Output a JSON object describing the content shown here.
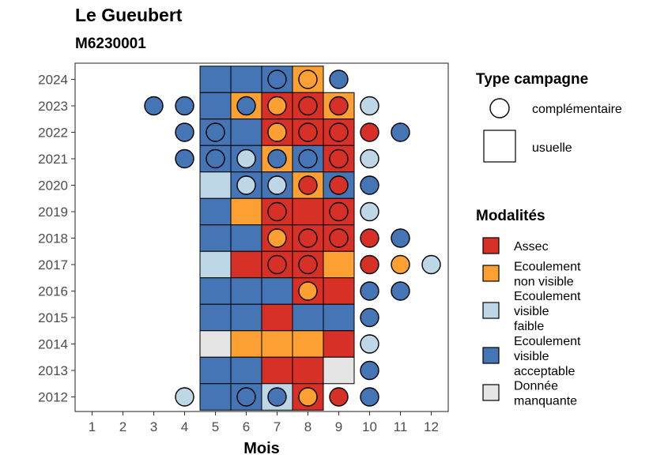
{
  "header": {
    "title": "Le Gueubert",
    "subtitle": "M6230001"
  },
  "chart_data": {
    "type": "heatmap",
    "xlabel": "Mois",
    "ylabel": "",
    "x_ticks": [
      "1",
      "2",
      "3",
      "4",
      "5",
      "6",
      "7",
      "8",
      "9",
      "10",
      "11",
      "12"
    ],
    "y_ticks": [
      "2012",
      "2013",
      "2014",
      "2015",
      "2016",
      "2017",
      "2018",
      "2019",
      "2020",
      "2021",
      "2022",
      "2023",
      "2024"
    ],
    "grid": false,
    "modalities": [
      {
        "key": "assec",
        "label_lines": [
          "Assec"
        ],
        "color": "#D73027"
      },
      {
        "key": "nonvisible",
        "label_lines": [
          "Ecoulement",
          "non visible"
        ],
        "color": "#FDA034"
      },
      {
        "key": "faible",
        "label_lines": [
          "Ecoulement",
          "visible",
          "faible"
        ],
        "color": "#BDD7E7"
      },
      {
        "key": "acceptable",
        "label_lines": [
          "Ecoulement",
          "visible",
          "acceptable"
        ],
        "color": "#4575B4"
      },
      {
        "key": "manquante",
        "label_lines": [
          "Donnée",
          "manquante"
        ],
        "color": "#E5E5E5"
      }
    ],
    "campaign_types": [
      {
        "key": "complementaire",
        "label": "complémentaire",
        "shape": "circle"
      },
      {
        "key": "usuelle",
        "label": "usuelle",
        "shape": "square"
      }
    ],
    "usuelle": [
      {
        "year": 2024,
        "months": [
          5,
          6,
          7,
          8
        ],
        "values": [
          "acceptable",
          "acceptable",
          "acceptable",
          "nonvisible"
        ]
      },
      {
        "year": 2023,
        "months": [
          5,
          6,
          7,
          8,
          9
        ],
        "values": [
          "acceptable",
          "nonvisible",
          "assec",
          "assec",
          "nonvisible"
        ]
      },
      {
        "year": 2022,
        "months": [
          5,
          6,
          7,
          8,
          9
        ],
        "values": [
          "acceptable",
          "acceptable",
          "assec",
          "assec",
          "assec"
        ]
      },
      {
        "year": 2021,
        "months": [
          5,
          6,
          7,
          8,
          9
        ],
        "values": [
          "acceptable",
          "acceptable",
          "nonvisible",
          "acceptable",
          "assec"
        ]
      },
      {
        "year": 2020,
        "months": [
          5,
          6,
          7,
          8,
          9
        ],
        "values": [
          "faible",
          "acceptable",
          "acceptable",
          "nonvisible",
          "acceptable"
        ]
      },
      {
        "year": 2019,
        "months": [
          5,
          6,
          7,
          8,
          9
        ],
        "values": [
          "acceptable",
          "nonvisible",
          "assec",
          "assec",
          "assec"
        ]
      },
      {
        "year": 2018,
        "months": [
          5,
          6,
          7,
          8,
          9
        ],
        "values": [
          "acceptable",
          "acceptable",
          "assec",
          "assec",
          "assec"
        ]
      },
      {
        "year": 2017,
        "months": [
          5,
          6,
          7,
          8,
          9
        ],
        "values": [
          "faible",
          "assec",
          "assec",
          "assec",
          "nonvisible"
        ]
      },
      {
        "year": 2016,
        "months": [
          5,
          6,
          7,
          8,
          9
        ],
        "values": [
          "acceptable",
          "acceptable",
          "acceptable",
          "assec",
          "assec"
        ]
      },
      {
        "year": 2015,
        "months": [
          5,
          6,
          7,
          8,
          9
        ],
        "values": [
          "acceptable",
          "acceptable",
          "assec",
          "acceptable",
          "acceptable"
        ]
      },
      {
        "year": 2014,
        "months": [
          5,
          6,
          7,
          8,
          9
        ],
        "values": [
          "manquante",
          "nonvisible",
          "nonvisible",
          "nonvisible",
          "assec"
        ]
      },
      {
        "year": 2013,
        "months": [
          5,
          6,
          7,
          8,
          9
        ],
        "values": [
          "acceptable",
          "acceptable",
          "assec",
          "assec",
          "manquante"
        ]
      },
      {
        "year": 2012,
        "months": [
          5,
          6,
          7,
          8
        ],
        "values": [
          "acceptable",
          "acceptable",
          "faible",
          "assec"
        ]
      }
    ],
    "complementaire": [
      {
        "year": 2024,
        "month": 7,
        "value": "acceptable"
      },
      {
        "year": 2024,
        "month": 8,
        "value": "nonvisible"
      },
      {
        "year": 2024,
        "month": 9,
        "value": "acceptable"
      },
      {
        "year": 2023,
        "month": 3,
        "value": "acceptable"
      },
      {
        "year": 2023,
        "month": 4,
        "value": "acceptable"
      },
      {
        "year": 2023,
        "month": 6,
        "value": "acceptable"
      },
      {
        "year": 2023,
        "month": 7,
        "value": "nonvisible"
      },
      {
        "year": 2023,
        "month": 8,
        "value": "assec"
      },
      {
        "year": 2023,
        "month": 9,
        "value": "assec"
      },
      {
        "year": 2023,
        "month": 10,
        "value": "faible"
      },
      {
        "year": 2022,
        "month": 4,
        "value": "acceptable"
      },
      {
        "year": 2022,
        "month": 5,
        "value": "acceptable"
      },
      {
        "year": 2022,
        "month": 7,
        "value": "nonvisible"
      },
      {
        "year": 2022,
        "month": 8,
        "value": "assec"
      },
      {
        "year": 2022,
        "month": 9,
        "value": "assec"
      },
      {
        "year": 2022,
        "month": 10,
        "value": "assec"
      },
      {
        "year": 2022,
        "month": 11,
        "value": "acceptable"
      },
      {
        "year": 2021,
        "month": 4,
        "value": "acceptable"
      },
      {
        "year": 2021,
        "month": 5,
        "value": "acceptable"
      },
      {
        "year": 2021,
        "month": 6,
        "value": "faible"
      },
      {
        "year": 2021,
        "month": 7,
        "value": "acceptable"
      },
      {
        "year": 2021,
        "month": 8,
        "value": "acceptable"
      },
      {
        "year": 2021,
        "month": 9,
        "value": "assec"
      },
      {
        "year": 2021,
        "month": 10,
        "value": "faible"
      },
      {
        "year": 2020,
        "month": 6,
        "value": "faible"
      },
      {
        "year": 2020,
        "month": 7,
        "value": "faible"
      },
      {
        "year": 2020,
        "month": 8,
        "value": "assec"
      },
      {
        "year": 2020,
        "month": 9,
        "value": "assec"
      },
      {
        "year": 2020,
        "month": 10,
        "value": "acceptable"
      },
      {
        "year": 2019,
        "month": 7,
        "value": "assec"
      },
      {
        "year": 2019,
        "month": 9,
        "value": "assec"
      },
      {
        "year": 2019,
        "month": 10,
        "value": "faible"
      },
      {
        "year": 2018,
        "month": 7,
        "value": "nonvisible"
      },
      {
        "year": 2018,
        "month": 8,
        "value": "assec"
      },
      {
        "year": 2018,
        "month": 9,
        "value": "assec"
      },
      {
        "year": 2018,
        "month": 10,
        "value": "assec"
      },
      {
        "year": 2018,
        "month": 11,
        "value": "acceptable"
      },
      {
        "year": 2017,
        "month": 7,
        "value": "assec"
      },
      {
        "year": 2017,
        "month": 8,
        "value": "assec"
      },
      {
        "year": 2017,
        "month": 10,
        "value": "assec"
      },
      {
        "year": 2017,
        "month": 11,
        "value": "nonvisible"
      },
      {
        "year": 2017,
        "month": 12,
        "value": "faible"
      },
      {
        "year": 2016,
        "month": 8,
        "value": "nonvisible"
      },
      {
        "year": 2016,
        "month": 10,
        "value": "acceptable"
      },
      {
        "year": 2016,
        "month": 11,
        "value": "acceptable"
      },
      {
        "year": 2015,
        "month": 10,
        "value": "acceptable"
      },
      {
        "year": 2014,
        "month": 10,
        "value": "faible"
      },
      {
        "year": 2013,
        "month": 10,
        "value": "acceptable"
      },
      {
        "year": 2012,
        "month": 4,
        "value": "faible"
      },
      {
        "year": 2012,
        "month": 6,
        "value": "acceptable"
      },
      {
        "year": 2012,
        "month": 7,
        "value": "acceptable"
      },
      {
        "year": 2012,
        "month": 8,
        "value": "nonvisible"
      },
      {
        "year": 2012,
        "month": 9,
        "value": "assec"
      },
      {
        "year": 2012,
        "month": 10,
        "value": "acceptable"
      }
    ],
    "legend": {
      "campaign_title": "Type campagne",
      "modality_title": "Modalités",
      "position": "right"
    }
  }
}
